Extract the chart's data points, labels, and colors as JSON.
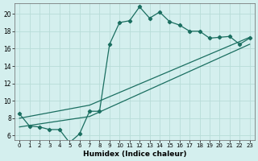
{
  "xlabel": "Humidex (Indice chaleur)",
  "xlim": [
    -0.5,
    23.5
  ],
  "ylim": [
    5.5,
    21.2
  ],
  "yticks": [
    6,
    8,
    10,
    12,
    14,
    16,
    18,
    20
  ],
  "xticks": [
    0,
    1,
    2,
    3,
    4,
    5,
    6,
    7,
    8,
    9,
    10,
    11,
    12,
    13,
    14,
    15,
    16,
    17,
    18,
    19,
    20,
    21,
    22,
    23
  ],
  "bg_color": "#d4efee",
  "grid_color": "#b8ddd8",
  "line_color": "#1a6e60",
  "curve_x": [
    0,
    1,
    2,
    3,
    4,
    5,
    6,
    7,
    8,
    9,
    10,
    11,
    12,
    13,
    14,
    15,
    16,
    17,
    18,
    19,
    20,
    21,
    22,
    23
  ],
  "curve_y": [
    8.5,
    7.1,
    7.0,
    6.7,
    6.7,
    5.2,
    6.2,
    8.8,
    8.8,
    16.5,
    19.0,
    19.2,
    20.8,
    19.5,
    20.2,
    19.1,
    18.7,
    18.0,
    18.0,
    17.2,
    17.3,
    17.4,
    16.5,
    17.2
  ],
  "line2_x": [
    0,
    7,
    23
  ],
  "line2_y": [
    8.0,
    9.5,
    17.3
  ],
  "line3_x": [
    0,
    7,
    23
  ],
  "line3_y": [
    7.0,
    8.2,
    16.5
  ]
}
